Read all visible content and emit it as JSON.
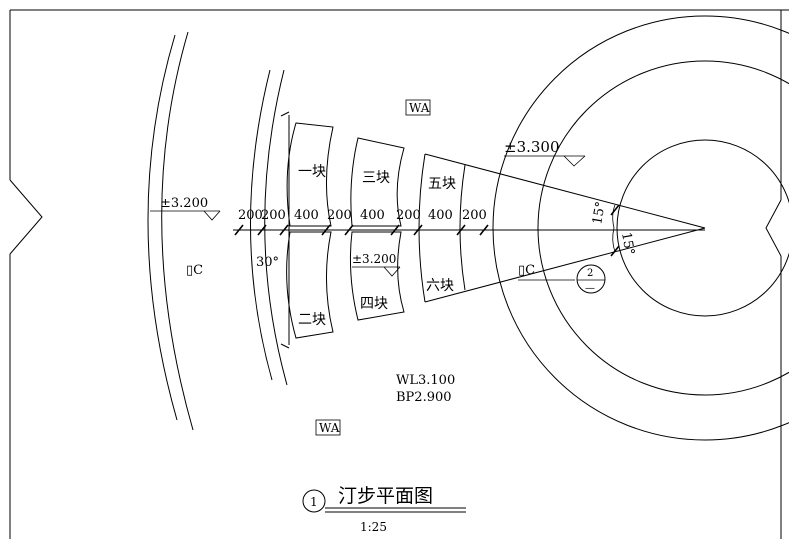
{
  "drawing": {
    "title": "汀步平面图",
    "scale": "1:25",
    "detail_number": "1"
  },
  "blocks": [
    "一块",
    "二块",
    "三块",
    "四块",
    "五块",
    "六块"
  ],
  "dimensions": [
    "200",
    "200",
    "400",
    "200",
    "400",
    "200",
    "400",
    "200"
  ],
  "elevations": {
    "left": "±3.200",
    "top_right": "±3.300",
    "center": "±3.200"
  },
  "angles": {
    "left": "30°",
    "upper_right": "15°",
    "lower_right": "15°"
  },
  "material_tags": {
    "top": "WA",
    "bottom": "WA",
    "left_code": "▯C",
    "right_code": "▯C"
  },
  "water_level": {
    "wl": "WL3.100",
    "bp": "BP2.900"
  },
  "callout": {
    "number": "2",
    "sheet": "—"
  }
}
